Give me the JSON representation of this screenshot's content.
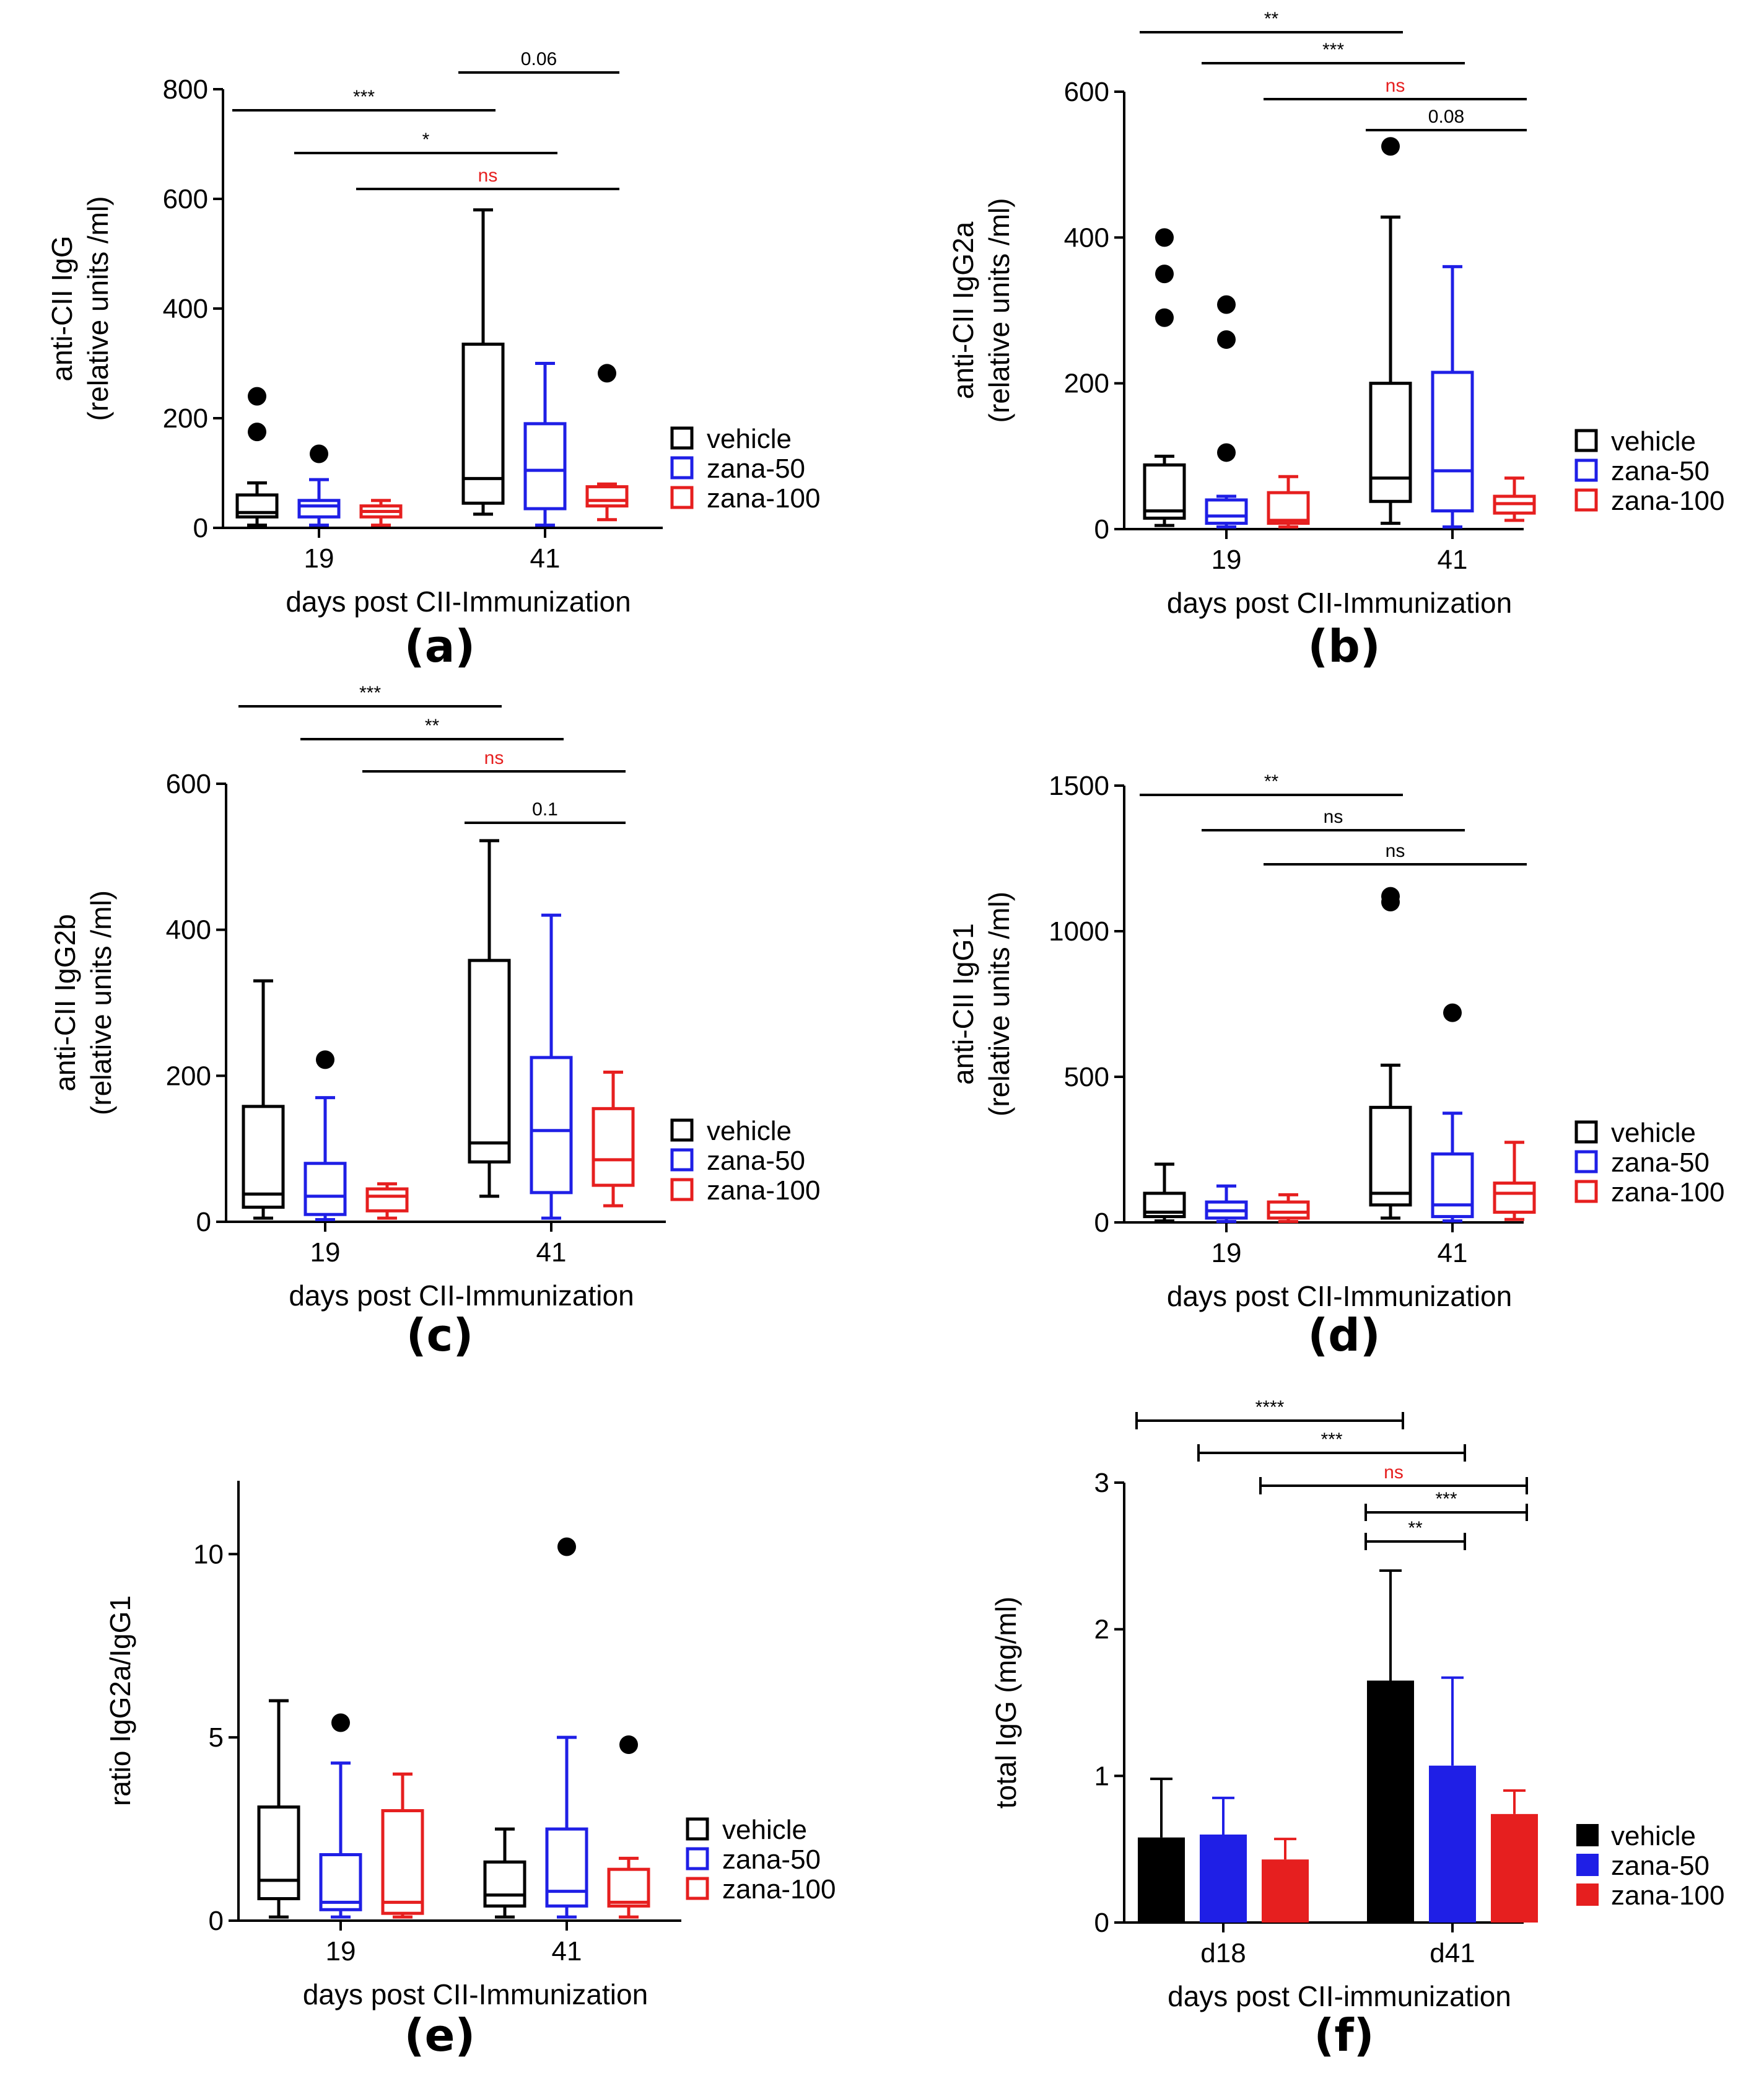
{
  "colors": {
    "vehicle": "#000000",
    "zana_50": "#1f1fe6",
    "zana_100": "#e61f1f",
    "sig_ns": "#e61f1f",
    "sig_default": "#000000"
  },
  "chart_data": [
    {
      "id": "a",
      "panel_label": "(a)",
      "type": "box",
      "ylabel_lines": [
        "anti-CII IgG",
        "(relative units /ml)"
      ],
      "xlabel": "days post CII-Immunization",
      "categories": [
        "19",
        "41"
      ],
      "ylim": [
        0,
        800
      ],
      "yticks": [
        0,
        200,
        400,
        600,
        800
      ],
      "ytick_labels": [
        "0",
        "200",
        "400",
        "600",
        "800"
      ],
      "legend": [
        "vehicle",
        "zana-50",
        "zana-100"
      ],
      "series": [
        {
          "name": "vehicle",
          "boxes": [
            {
              "whisker_low": 5,
              "q1": 20,
              "median": 28,
              "q3": 60,
              "whisker_high": 82,
              "outliers": [
                175,
                240
              ]
            },
            {
              "whisker_low": 25,
              "q1": 45,
              "median": 90,
              "q3": 335,
              "whisker_high": 580,
              "outliers": []
            }
          ]
        },
        {
          "name": "zana-50",
          "boxes": [
            {
              "whisker_low": 5,
              "q1": 20,
              "median": 40,
              "q3": 50,
              "whisker_high": 88,
              "outliers": [
                135
              ]
            },
            {
              "whisker_low": 5,
              "q1": 35,
              "median": 105,
              "q3": 190,
              "whisker_high": 300,
              "outliers": []
            }
          ]
        },
        {
          "name": "zana-100",
          "boxes": [
            {
              "whisker_low": 5,
              "q1": 20,
              "median": 30,
              "q3": 40,
              "whisker_high": 50,
              "outliers": []
            },
            {
              "whisker_low": 15,
              "q1": 40,
              "median": 50,
              "q3": 75,
              "whisker_high": 80,
              "outliers": [
                282
              ]
            }
          ]
        }
      ],
      "significance": [
        {
          "from": [
            0,
            0
          ],
          "to": [
            1,
            0
          ],
          "label": "***",
          "ns": false
        },
        {
          "from": [
            0,
            1
          ],
          "to": [
            1,
            1
          ],
          "label": "*",
          "ns": false
        },
        {
          "from": [
            0,
            2
          ],
          "to": [
            1,
            2
          ],
          "label": "ns",
          "ns": true
        },
        {
          "from": [
            1,
            0
          ],
          "to": [
            1,
            2
          ],
          "label": "0.06",
          "ns": false
        }
      ]
    },
    {
      "id": "b",
      "panel_label": "(b)",
      "type": "box",
      "ylabel_lines": [
        "anti-CII IgG2a",
        "(relative units /ml)"
      ],
      "xlabel": "days post CII-Immunization",
      "categories": [
        "19",
        "41"
      ],
      "ylim": [
        0,
        600
      ],
      "yticks": [
        0,
        200,
        400,
        600
      ],
      "ytick_labels": [
        "0",
        "200",
        "400",
        "600"
      ],
      "legend": [
        "vehicle",
        "zana-50",
        "zana-100"
      ],
      "series": [
        {
          "name": "vehicle",
          "boxes": [
            {
              "whisker_low": 5,
              "q1": 15,
              "median": 25,
              "q3": 88,
              "whisker_high": 100,
              "outliers": [
                290,
                350,
                400
              ]
            },
            {
              "whisker_low": 8,
              "q1": 38,
              "median": 70,
              "q3": 200,
              "whisker_high": 428,
              "outliers": [
                525
              ]
            }
          ]
        },
        {
          "name": "zana-50",
          "boxes": [
            {
              "whisker_low": 3,
              "q1": 8,
              "median": 18,
              "q3": 40,
              "whisker_high": 45,
              "outliers": [
                105,
                260,
                308
              ]
            },
            {
              "whisker_low": 3,
              "q1": 25,
              "median": 80,
              "q3": 215,
              "whisker_high": 360,
              "outliers": []
            }
          ]
        },
        {
          "name": "zana-100",
          "boxes": [
            {
              "whisker_low": 3,
              "q1": 8,
              "median": 12,
              "q3": 50,
              "whisker_high": 72,
              "outliers": []
            },
            {
              "whisker_low": 12,
              "q1": 22,
              "median": 35,
              "q3": 45,
              "whisker_high": 70,
              "outliers": []
            }
          ]
        }
      ],
      "significance": [
        {
          "from": [
            0,
            0
          ],
          "to": [
            1,
            0
          ],
          "label": "**",
          "ns": false
        },
        {
          "from": [
            0,
            1
          ],
          "to": [
            1,
            1
          ],
          "label": "***",
          "ns": false
        },
        {
          "from": [
            0,
            2
          ],
          "to": [
            1,
            2
          ],
          "label": "ns",
          "ns": true
        },
        {
          "from": [
            1,
            0
          ],
          "to": [
            1,
            2
          ],
          "label": "0.08",
          "ns": false
        }
      ]
    },
    {
      "id": "c",
      "panel_label": "(c)",
      "type": "box",
      "ylabel_lines": [
        "anti-CII IgG2b",
        "(relative units /ml)"
      ],
      "xlabel": "days post CII-Immunization",
      "categories": [
        "19",
        "41"
      ],
      "ylim": [
        0,
        600
      ],
      "yticks": [
        0,
        200,
        400,
        600
      ],
      "ytick_labels": [
        "0",
        "200",
        "400",
        "600"
      ],
      "legend": [
        "vehicle",
        "zana-50",
        "zana-100"
      ],
      "series": [
        {
          "name": "vehicle",
          "boxes": [
            {
              "whisker_low": 5,
              "q1": 20,
              "median": 38,
              "q3": 158,
              "whisker_high": 330,
              "outliers": []
            },
            {
              "whisker_low": 35,
              "q1": 82,
              "median": 108,
              "q3": 358,
              "whisker_high": 522,
              "outliers": []
            }
          ]
        },
        {
          "name": "zana-50",
          "boxes": [
            {
              "whisker_low": 3,
              "q1": 10,
              "median": 35,
              "q3": 80,
              "whisker_high": 170,
              "outliers": [
                222
              ]
            },
            {
              "whisker_low": 5,
              "q1": 40,
              "median": 125,
              "q3": 225,
              "whisker_high": 420,
              "outliers": []
            }
          ]
        },
        {
          "name": "zana-100",
          "boxes": [
            {
              "whisker_low": 5,
              "q1": 15,
              "median": 35,
              "q3": 45,
              "whisker_high": 52,
              "outliers": []
            },
            {
              "whisker_low": 22,
              "q1": 50,
              "median": 85,
              "q3": 155,
              "whisker_high": 205,
              "outliers": []
            }
          ]
        }
      ],
      "significance": [
        {
          "from": [
            0,
            0
          ],
          "to": [
            1,
            0
          ],
          "label": "***",
          "ns": false
        },
        {
          "from": [
            0,
            1
          ],
          "to": [
            1,
            1
          ],
          "label": "**",
          "ns": false
        },
        {
          "from": [
            0,
            2
          ],
          "to": [
            1,
            2
          ],
          "label": "ns",
          "ns": true
        },
        {
          "from": [
            1,
            0
          ],
          "to": [
            1,
            2
          ],
          "label": "0.1",
          "ns": false
        }
      ]
    },
    {
      "id": "d",
      "panel_label": "(d)",
      "type": "box",
      "ylabel_lines": [
        "anti-CII IgG1",
        "(relative units /ml)"
      ],
      "xlabel": "days post CII-Immunization",
      "categories": [
        "19",
        "41"
      ],
      "ylim": [
        0,
        1500
      ],
      "yticks": [
        0,
        500,
        1000,
        1500
      ],
      "ytick_labels": [
        "0",
        "500",
        "1000",
        "1500"
      ],
      "legend": [
        "vehicle",
        "zana-50",
        "zana-100"
      ],
      "series": [
        {
          "name": "vehicle",
          "boxes": [
            {
              "whisker_low": 5,
              "q1": 20,
              "median": 35,
              "q3": 100,
              "whisker_high": 200,
              "outliers": []
            },
            {
              "whisker_low": 15,
              "q1": 60,
              "median": 100,
              "q3": 395,
              "whisker_high": 540,
              "outliers": [
                1100,
                1120
              ]
            }
          ]
        },
        {
          "name": "zana-50",
          "boxes": [
            {
              "whisker_low": 3,
              "q1": 15,
              "median": 40,
              "q3": 70,
              "whisker_high": 125,
              "outliers": []
            },
            {
              "whisker_low": 5,
              "q1": 20,
              "median": 60,
              "q3": 235,
              "whisker_high": 375,
              "outliers": [
                720
              ]
            }
          ]
        },
        {
          "name": "zana-100",
          "boxes": [
            {
              "whisker_low": 3,
              "q1": 15,
              "median": 35,
              "q3": 70,
              "whisker_high": 95,
              "outliers": []
            },
            {
              "whisker_low": 10,
              "q1": 35,
              "median": 100,
              "q3": 135,
              "whisker_high": 275,
              "outliers": []
            }
          ]
        }
      ],
      "significance": [
        {
          "from": [
            0,
            0
          ],
          "to": [
            1,
            0
          ],
          "label": "**",
          "ns": false
        },
        {
          "from": [
            0,
            1
          ],
          "to": [
            1,
            1
          ],
          "label": "ns",
          "ns": false
        },
        {
          "from": [
            0,
            2
          ],
          "to": [
            1,
            2
          ],
          "label": "ns",
          "ns": false
        }
      ]
    },
    {
      "id": "e",
      "panel_label": "(e)",
      "type": "box",
      "ylabel_lines": [
        "ratio IgG2a/IgG1"
      ],
      "xlabel": "days post CII-Immunization",
      "categories": [
        "19",
        "41"
      ],
      "ylim": [
        0,
        12
      ],
      "yticks": [
        0,
        5,
        10
      ],
      "ytick_labels": [
        "0",
        "5",
        "10"
      ],
      "legend": [
        "vehicle",
        "zana-50",
        "zana-100"
      ],
      "series": [
        {
          "name": "vehicle",
          "boxes": [
            {
              "whisker_low": 0.1,
              "q1": 0.6,
              "median": 1.1,
              "q3": 3.1,
              "whisker_high": 6.0,
              "outliers": []
            },
            {
              "whisker_low": 0.1,
              "q1": 0.4,
              "median": 0.7,
              "q3": 1.6,
              "whisker_high": 2.5,
              "outliers": []
            }
          ]
        },
        {
          "name": "zana-50",
          "boxes": [
            {
              "whisker_low": 0.1,
              "q1": 0.3,
              "median": 0.5,
              "q3": 1.8,
              "whisker_high": 4.3,
              "outliers": [
                5.4
              ]
            },
            {
              "whisker_low": 0.1,
              "q1": 0.4,
              "median": 0.8,
              "q3": 2.5,
              "whisker_high": 5.0,
              "outliers": [
                10.2
              ]
            }
          ]
        },
        {
          "name": "zana-100",
          "boxes": [
            {
              "whisker_low": 0.1,
              "q1": 0.2,
              "median": 0.5,
              "q3": 3.0,
              "whisker_high": 4.0,
              "outliers": []
            },
            {
              "whisker_low": 0.1,
              "q1": 0.4,
              "median": 0.5,
              "q3": 1.4,
              "whisker_high": 1.7,
              "outliers": [
                4.8
              ]
            }
          ]
        }
      ],
      "significance": []
    },
    {
      "id": "f",
      "panel_label": "(f)",
      "type": "bar",
      "ylabel_lines": [
        "total IgG (mg/ml)"
      ],
      "xlabel": "days post CII-immunization",
      "categories": [
        "d18",
        "d41"
      ],
      "ylim": [
        0,
        3
      ],
      "yticks": [
        0,
        1,
        2,
        3
      ],
      "ytick_labels": [
        "0",
        "1",
        "2",
        "3"
      ],
      "legend": [
        "vehicle",
        "zana-50",
        "zana-100"
      ],
      "series": [
        {
          "name": "vehicle",
          "values": [
            0.58,
            1.65
          ],
          "errors": [
            0.4,
            0.75
          ]
        },
        {
          "name": "zana-50",
          "values": [
            0.6,
            1.07
          ],
          "errors": [
            0.25,
            0.6
          ]
        },
        {
          "name": "zana-100",
          "values": [
            0.43,
            0.74
          ],
          "errors": [
            0.14,
            0.16
          ]
        }
      ],
      "significance": [
        {
          "from": [
            0,
            0
          ],
          "to": [
            1,
            0
          ],
          "label": "****",
          "ns": false
        },
        {
          "from": [
            0,
            1
          ],
          "to": [
            1,
            1
          ],
          "label": "***",
          "ns": false
        },
        {
          "from": [
            0,
            2
          ],
          "to": [
            1,
            2
          ],
          "label": "ns",
          "ns": true
        },
        {
          "from": [
            1,
            0
          ],
          "to": [
            1,
            2
          ],
          "label": "***",
          "ns": false
        },
        {
          "from": [
            1,
            0
          ],
          "to": [
            1,
            1
          ],
          "label": "**",
          "ns": false
        }
      ]
    }
  ]
}
